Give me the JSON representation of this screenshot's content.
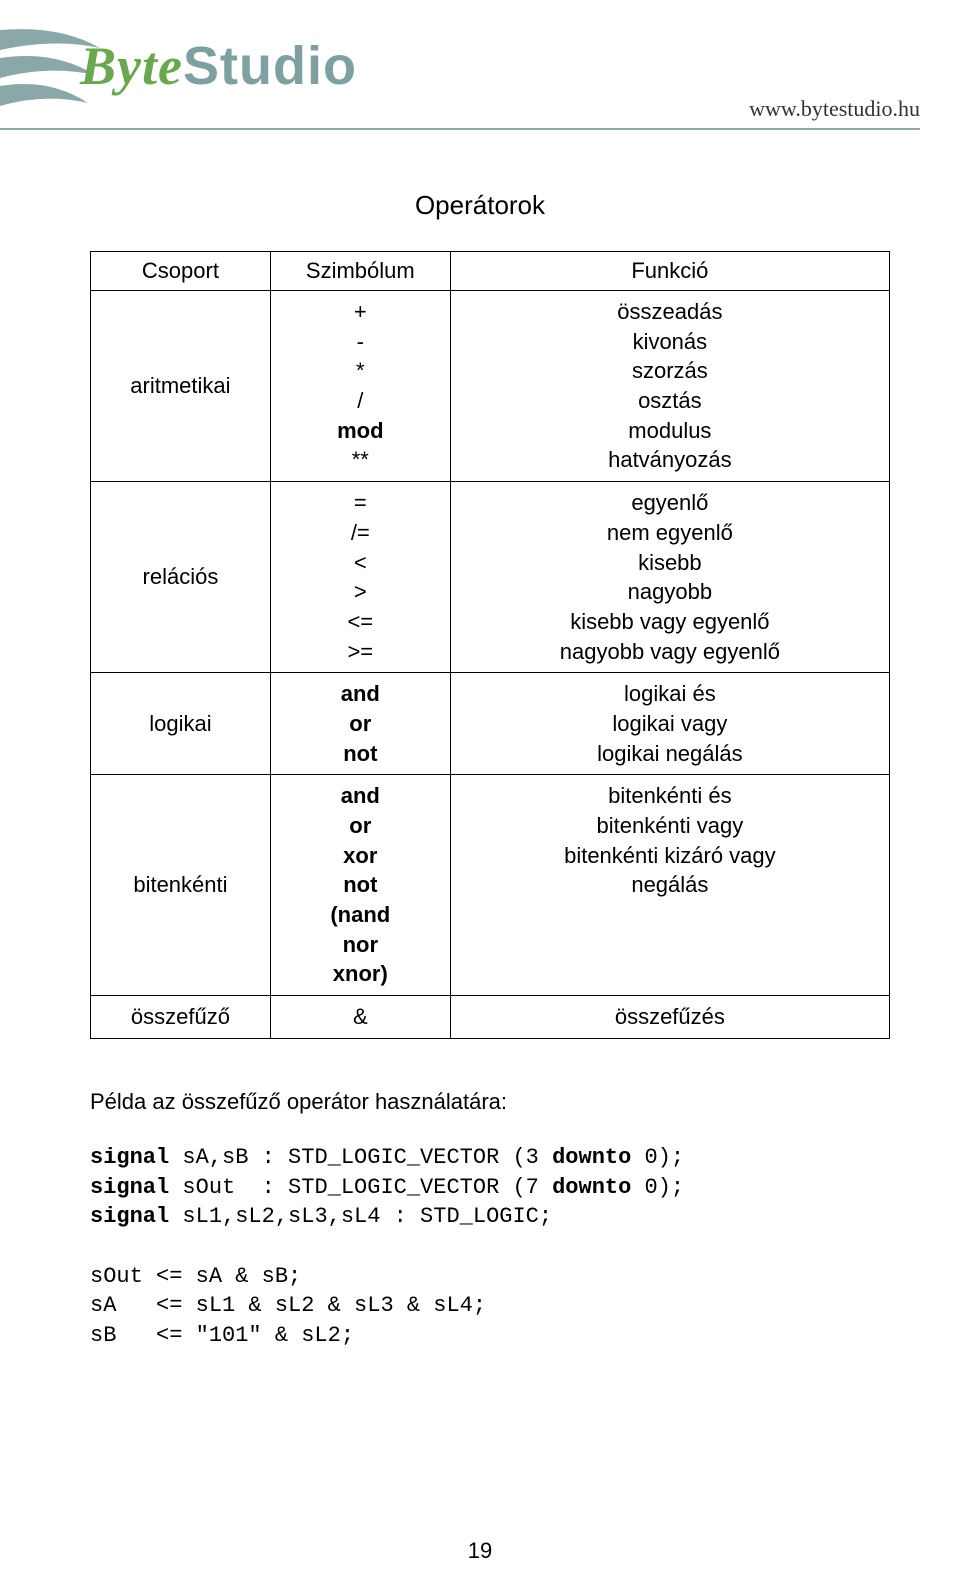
{
  "header": {
    "logo_byte": "Byte",
    "logo_studio": "Studio",
    "url": "www.bytestudio.hu",
    "swoosh_color": "#8aa8a8",
    "logo_byte_color": "#6aa84f",
    "logo_studio_color": "#7fa0a0"
  },
  "title": "Operátorok",
  "table": {
    "columns": [
      "Csoport",
      "Szimbólum",
      "Funkció"
    ],
    "rows": [
      {
        "group": "aritmetikai",
        "symbols": [
          "+",
          "-",
          "*",
          "/",
          "mod",
          "**"
        ],
        "symbols_bold": [
          false,
          false,
          false,
          false,
          true,
          false
        ],
        "funcs": [
          "összeadás",
          "kivonás",
          "szorzás",
          "osztás",
          "modulus",
          "hatványozás"
        ]
      },
      {
        "group": "relációs",
        "symbols": [
          "=",
          "/=",
          "<",
          ">",
          "<=",
          ">="
        ],
        "symbols_bold": [
          false,
          false,
          false,
          false,
          false,
          false
        ],
        "funcs": [
          "egyenlő",
          "nem egyenlő",
          "kisebb",
          "nagyobb",
          "kisebb vagy egyenlő",
          "nagyobb vagy egyenlő"
        ]
      },
      {
        "group": "logikai",
        "symbols": [
          "and",
          "or",
          "not"
        ],
        "symbols_bold": [
          true,
          true,
          true
        ],
        "funcs": [
          "logikai és",
          "logikai vagy",
          "logikai negálás"
        ]
      },
      {
        "group": "bitenkénti",
        "symbols": [
          "and",
          "or",
          "xor",
          "not",
          "(nand",
          "nor",
          "xnor)"
        ],
        "symbols_bold": [
          true,
          true,
          true,
          true,
          true,
          true,
          true
        ],
        "funcs": [
          "bitenkénti és",
          "bitenkénti vagy",
          "bitenkénti kizáró vagy",
          "negálás",
          "",
          "",
          ""
        ]
      },
      {
        "group": "összefűző",
        "symbols": [
          "&"
        ],
        "symbols_bold": [
          false
        ],
        "funcs": [
          "összefűzés"
        ]
      }
    ]
  },
  "example_heading": "Példa az összefűző operátor használatára:",
  "code": {
    "lines": [
      {
        "pre": "",
        "kw": "signal",
        "rest": " sA,sB : STD_LOGIC_VECTOR (3 ",
        "kw2": "downto",
        "rest2": " 0);"
      },
      {
        "pre": "",
        "kw": "signal",
        "rest": " sOut  : STD_LOGIC_VECTOR (7 ",
        "kw2": "downto",
        "rest2": " 0);"
      },
      {
        "pre": "",
        "kw": "signal",
        "rest": " sL1,sL2,sL3,sL4 : STD_LOGIC;",
        "kw2": "",
        "rest2": ""
      },
      {
        "pre": "",
        "kw": "",
        "rest": "",
        "kw2": "",
        "rest2": ""
      },
      {
        "pre": "sOut <= sA & sB;",
        "kw": "",
        "rest": "",
        "kw2": "",
        "rest2": ""
      },
      {
        "pre": "sA   <= sL1 & sL2 & sL3 & sL4;",
        "kw": "",
        "rest": "",
        "kw2": "",
        "rest2": ""
      },
      {
        "pre": "sB   <= \"101\" & sL2;",
        "kw": "",
        "rest": "",
        "kw2": "",
        "rest2": ""
      }
    ]
  },
  "page_number": "19"
}
